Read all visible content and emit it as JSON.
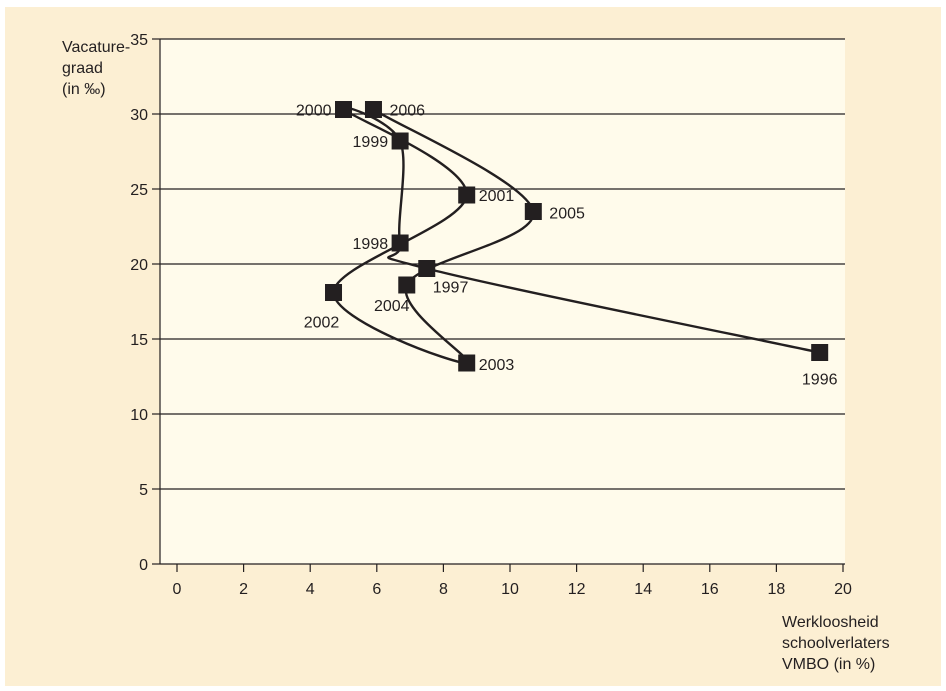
{
  "colors": {
    "panel_background": "#fcefd3",
    "plot_background": "#fffbeb",
    "ink": "#231f20"
  },
  "chart_data": {
    "type": "scatter",
    "title": "",
    "ylabel": "Vacature-\ngraad\n(in ‰)",
    "xlabel": "Werkloosheid\nschoolverlaters\nVMBO (in %)",
    "xlim": [
      0,
      20
    ],
    "ylim": [
      0,
      35
    ],
    "xticks": [
      0,
      2,
      4,
      6,
      8,
      10,
      12,
      14,
      16,
      18,
      20
    ],
    "yticks": [
      0,
      5,
      10,
      15,
      20,
      25,
      30,
      35
    ],
    "grid": "horizontal",
    "legend": "none",
    "connected_in_order": true,
    "points": [
      {
        "label": "1996",
        "x": 19.3,
        "y": 14.1
      },
      {
        "label": "1997",
        "x": 7.5,
        "y": 19.7
      },
      {
        "label": "1998",
        "x": 6.7,
        "y": 21.4
      },
      {
        "label": "1999",
        "x": 6.7,
        "y": 28.2
      },
      {
        "label": "2000",
        "x": 5.0,
        "y": 30.3
      },
      {
        "label": "2001",
        "x": 8.7,
        "y": 24.6
      },
      {
        "label": "2002",
        "x": 4.7,
        "y": 18.1
      },
      {
        "label": "2003",
        "x": 8.7,
        "y": 13.4
      },
      {
        "label": "2004",
        "x": 6.9,
        "y": 18.6
      },
      {
        "label": "2005",
        "x": 10.7,
        "y": 23.5
      },
      {
        "label": "2006",
        "x": 5.9,
        "y": 30.3
      }
    ]
  }
}
